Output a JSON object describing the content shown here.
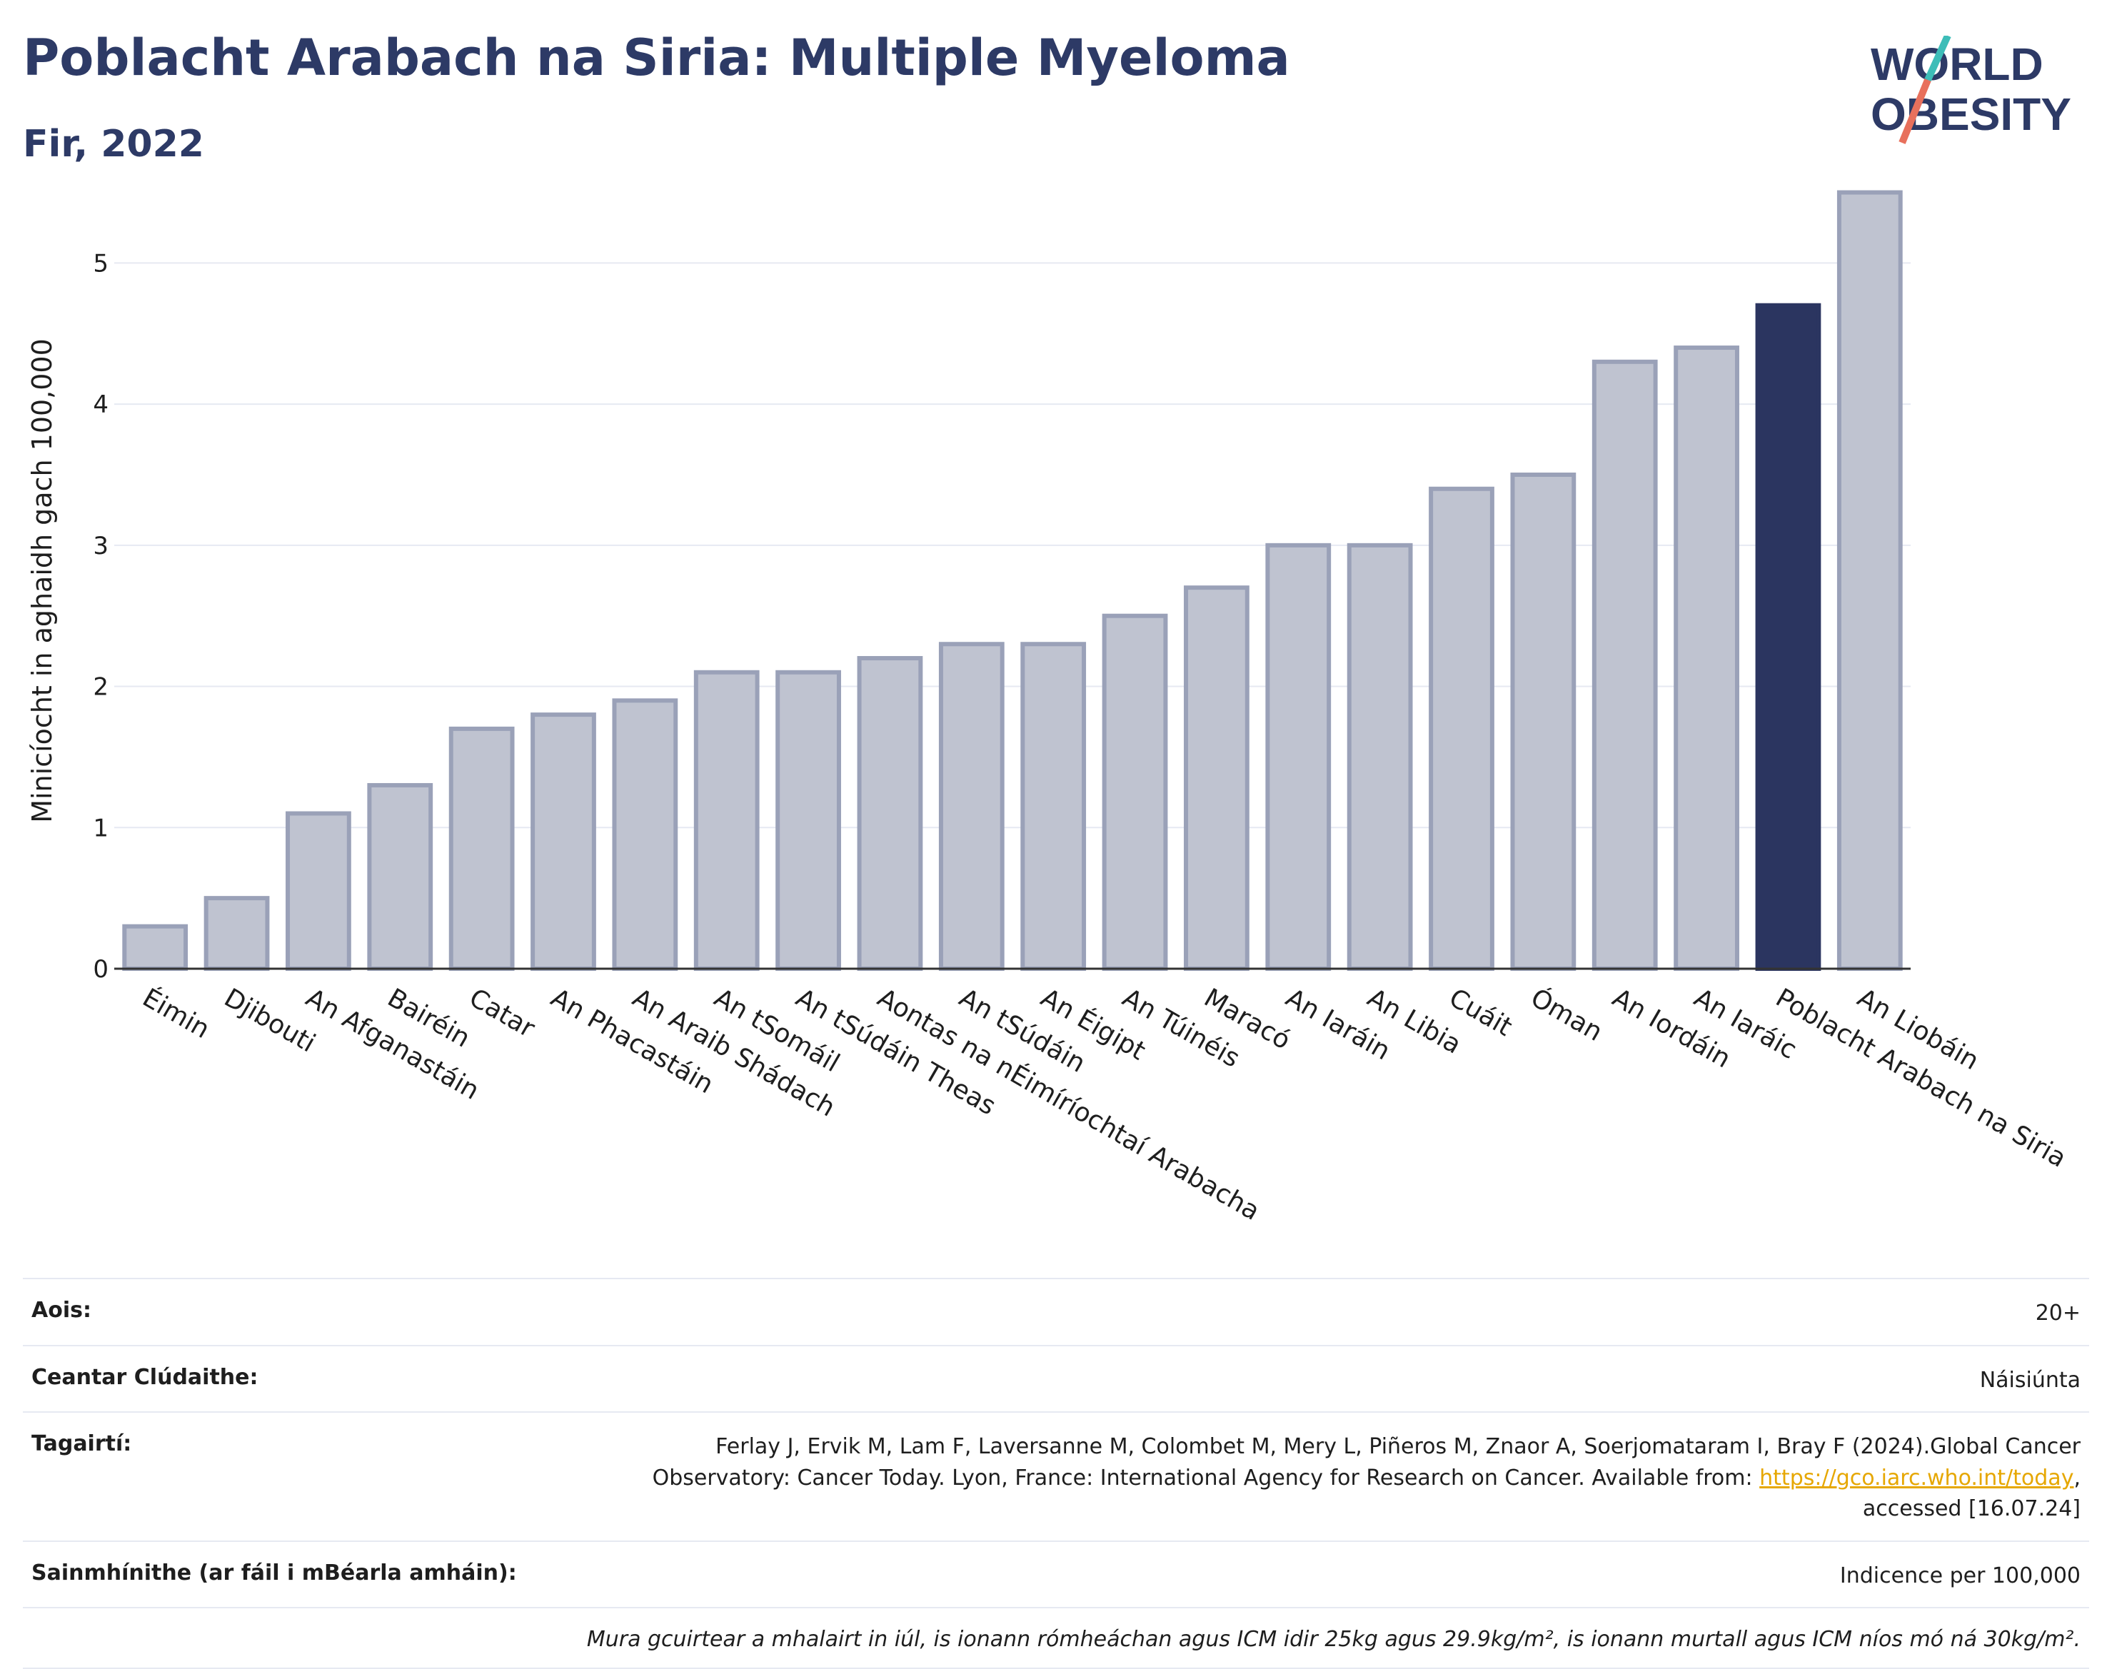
{
  "header": {
    "title": "Poblacht Arabach na Siria: Multiple Myeloma",
    "subtitle": "Fir, 2022"
  },
  "logo": {
    "line1": "WORLD",
    "line2": "OBESITY",
    "slash_colors": [
      "#3dbdb8",
      "#e8705c"
    ]
  },
  "colors": {
    "bar": "#bfc3d0",
    "bar_stroke": "#9aa1b8",
    "highlight": "#2b3560",
    "grid": "#e6e9f2",
    "axis": "#333333"
  },
  "chart_data": {
    "type": "bar",
    "ylabel": "Minicíocht in aghaidh gach 100,000",
    "ylim": [
      0,
      5.7
    ],
    "yticks": [
      0,
      1,
      2,
      3,
      4,
      5
    ],
    "grid": true,
    "categories": [
      "Éimin",
      "Djibouti",
      "An Afganastáin",
      "Bairéin",
      "Catar",
      "An Phacastáin",
      "An Araib Shádach",
      "An tSomáil",
      "An tSúdáin Theas",
      "Aontas na nÉimíríochtaí Arabacha",
      "An tSúdáin",
      "An Éigipt",
      "An Túinéis",
      "Maracó",
      "An Iaráin",
      "An Libia",
      "Cuáit",
      "Óman",
      "An Iordáin",
      "An Iaráic",
      "Poblacht Arabach na Siria",
      "An Liobáin"
    ],
    "values": [
      0.3,
      0.5,
      1.1,
      1.3,
      1.7,
      1.8,
      1.9,
      2.1,
      2.1,
      2.2,
      2.3,
      2.3,
      2.5,
      2.7,
      3.0,
      3.0,
      3.4,
      3.5,
      4.3,
      4.4,
      4.7,
      5.5
    ],
    "highlight": "Poblacht Arabach na Siria"
  },
  "info": {
    "age_label": "Aois:",
    "age_value": "20+",
    "area_label": "Ceantar Clúdaithe:",
    "area_value": "Náisiúnta",
    "ref_label": "Tagairtí:",
    "ref_line1": "Ferlay J, Ervik M, Lam F, Laversanne M, Colombet M, Mery L, Piñeros M, Znaor A, Soerjomataram I, Bray F (2024).Global Cancer",
    "ref_line2": "Observatory: Cancer Today. Lyon, France: International Agency for Research on Cancer. Available from: ",
    "ref_link": "https://gco.iarc.who.int/today",
    "ref_line2_end": ",",
    "ref_line3": "accessed [16.07.24]",
    "def_label": "Sainmhínithe (ar fáil i mBéarla amháin):",
    "def_value": "Indicence per 100,000",
    "note": "Mura gcuirtear a mhalairt in iúl, is ionann rómheáchan agus ICM idir 25kg agus 29.9kg/m², is ionann murtall agus ICM níos mó ná 30kg/m²."
  }
}
